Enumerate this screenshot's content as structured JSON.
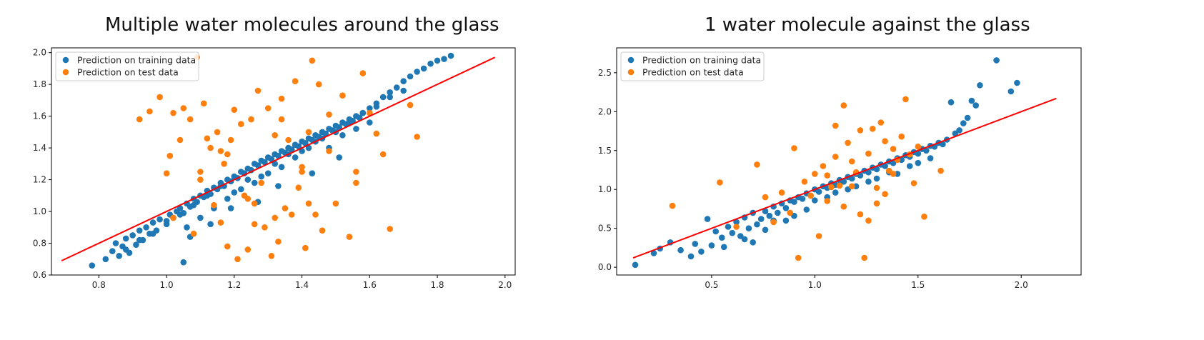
{
  "chart_data": [
    {
      "type": "scatter",
      "title": "Multiple water molecules around the glass",
      "xlabel": "",
      "ylabel": "",
      "xlim": [
        0.66,
        2.03
      ],
      "ylim": [
        0.6,
        2.03
      ],
      "xticks": [
        0.8,
        1.0,
        1.2,
        1.4,
        1.6,
        1.8,
        2.0
      ],
      "xtick_labels": [
        "0.8",
        "1.0",
        "1.2",
        "1.4",
        "1.6",
        "1.8",
        "2.0"
      ],
      "yticks": [
        0.6,
        0.8,
        1.0,
        1.2,
        1.4,
        1.6,
        1.8,
        2.0
      ],
      "ytick_labels": [
        "0.6",
        "0.8",
        "1.0",
        "1.2",
        "1.4",
        "1.6",
        "1.8",
        "2.0"
      ],
      "grid": false,
      "legend_position": "upper-left",
      "series": [
        {
          "name": "Prediction on training data",
          "color": "#1f77b4",
          "x": [
            0.78,
            0.82,
            0.84,
            0.85,
            0.86,
            0.87,
            0.88,
            0.89,
            0.9,
            0.91,
            0.92,
            0.93,
            0.94,
            0.95,
            0.96,
            0.97,
            0.98,
            1.0,
            1.01,
            1.02,
            1.03,
            1.04,
            1.05,
            1.06,
            1.07,
            1.08,
            1.09,
            1.1,
            1.11,
            1.12,
            1.13,
            1.14,
            1.15,
            1.16,
            1.17,
            1.18,
            1.19,
            1.2,
            1.21,
            1.22,
            1.23,
            1.24,
            1.25,
            1.26,
            1.27,
            1.28,
            1.29,
            1.3,
            1.31,
            1.32,
            1.33,
            1.34,
            1.35,
            1.36,
            1.37,
            1.38,
            1.39,
            1.4,
            1.41,
            1.42,
            1.43,
            1.44,
            1.45,
            1.46,
            1.47,
            1.48,
            1.49,
            1.5,
            1.51,
            1.52,
            1.53,
            1.54,
            1.55,
            1.56,
            1.57,
            1.58,
            1.6,
            1.62,
            1.64,
            1.66,
            1.68,
            1.7,
            1.72,
            1.74,
            1.76,
            1.78,
            1.8,
            1.82,
            1.84,
            1.06,
            1.1,
            1.14,
            1.18,
            1.22,
            1.26,
            1.3,
            1.34,
            1.38,
            1.42,
            1.46,
            1.5,
            1.54,
            1.58,
            1.62,
            1.66,
            1.7,
            0.88,
            0.92,
            0.96,
            1.0,
            1.04,
            1.08,
            1.12,
            1.16,
            1.2,
            1.24,
            1.28,
            1.32,
            1.36,
            1.4,
            1.44,
            1.48,
            1.52,
            1.56,
            1.6,
            1.05,
            1.07,
            1.13,
            1.19,
            1.27,
            1.33,
            1.43,
            1.51
          ],
          "y": [
            0.66,
            0.7,
            0.75,
            0.8,
            0.72,
            0.78,
            0.83,
            0.74,
            0.85,
            0.79,
            0.88,
            0.82,
            0.9,
            0.86,
            0.93,
            0.88,
            0.95,
            0.92,
            0.98,
            0.96,
            1.0,
            1.02,
            0.99,
            1.05,
            1.03,
            1.08,
            1.06,
            1.1,
            1.09,
            1.13,
            1.11,
            1.15,
            1.14,
            1.18,
            1.16,
            1.2,
            1.19,
            1.22,
            1.21,
            1.25,
            1.24,
            1.27,
            1.26,
            1.3,
            1.29,
            1.32,
            1.31,
            1.34,
            1.33,
            1.36,
            1.35,
            1.38,
            1.37,
            1.4,
            1.39,
            1.42,
            1.41,
            1.44,
            1.43,
            1.46,
            1.45,
            1.48,
            1.47,
            1.5,
            1.49,
            1.52,
            1.51,
            1.54,
            1.53,
            1.56,
            1.55,
            1.58,
            1.57,
            1.6,
            1.59,
            1.62,
            1.65,
            1.68,
            1.72,
            1.75,
            1.78,
            1.82,
            1.85,
            1.88,
            1.9,
            1.93,
            1.95,
            1.96,
            1.98,
            0.9,
            0.96,
            1.02,
            1.08,
            1.14,
            1.18,
            1.24,
            1.28,
            1.34,
            1.4,
            1.46,
            1.5,
            1.56,
            1.62,
            1.66,
            1.72,
            1.76,
            0.76,
            0.82,
            0.86,
            0.94,
            0.98,
            1.04,
            1.1,
            1.16,
            1.12,
            1.2,
            1.22,
            1.3,
            1.36,
            1.38,
            1.44,
            1.4,
            1.48,
            1.52,
            1.56,
            0.68,
            0.84,
            0.92,
            1.02,
            1.06,
            1.16,
            1.24,
            1.34
          ],
          "points_note": ""
        },
        {
          "name": "Prediction on test data",
          "color": "#ff7f0e",
          "x": [
            0.92,
            0.95,
            0.98,
            1.0,
            1.01,
            1.02,
            1.04,
            1.05,
            1.07,
            1.09,
            1.1,
            1.11,
            1.12,
            1.13,
            1.14,
            1.15,
            1.16,
            1.17,
            1.18,
            1.19,
            1.2,
            1.21,
            1.22,
            1.23,
            1.24,
            1.25,
            1.26,
            1.27,
            1.28,
            1.29,
            1.3,
            1.31,
            1.32,
            1.33,
            1.34,
            1.35,
            1.36,
            1.37,
            1.38,
            1.39,
            1.4,
            1.41,
            1.42,
            1.43,
            1.44,
            1.45,
            1.46,
            1.48,
            1.5,
            1.52,
            1.54,
            1.56,
            1.58,
            1.6,
            1.62,
            1.64,
            1.66,
            1.72,
            1.74,
            1.02,
            1.1,
            1.18,
            1.26,
            1.34,
            1.42,
            1.08,
            1.16,
            1.24,
            1.32,
            1.4,
            1.48,
            1.56
          ],
          "y": [
            1.58,
            1.63,
            1.72,
            1.24,
            1.35,
            1.62,
            1.45,
            1.65,
            1.58,
            1.97,
            1.25,
            1.68,
            1.46,
            1.4,
            1.04,
            1.5,
            0.93,
            1.3,
            0.78,
            1.45,
            1.64,
            0.7,
            1.55,
            1.1,
            0.76,
            1.58,
            0.92,
            1.76,
            1.18,
            0.9,
            1.65,
            0.72,
            1.48,
            0.81,
            1.71,
            1.02,
            1.45,
            0.98,
            1.82,
            1.15,
            1.25,
            0.77,
            1.5,
            1.95,
            0.98,
            1.8,
            0.88,
            1.61,
            1.05,
            1.73,
            0.84,
            1.18,
            1.87,
            1.62,
            1.49,
            1.36,
            0.89,
            1.67,
            1.47,
            0.96,
            1.2,
            1.36,
            1.05,
            1.58,
            1.05,
            0.86,
            1.38,
            1.08,
            0.96,
            1.28,
            1.38,
            1.25
          ]
        }
      ],
      "fit_line": {
        "color": "#ff0000",
        "x": [
          0.69,
          1.97
        ],
        "y": [
          0.69,
          1.97
        ]
      }
    },
    {
      "type": "scatter",
      "title": "1 water molecule against the glass",
      "xlabel": "",
      "ylabel": "",
      "xlim": [
        0.04,
        2.29
      ],
      "ylim": [
        -0.1,
        2.82
      ],
      "xticks": [
        0.5,
        1.0,
        1.5,
        2.0
      ],
      "xtick_labels": [
        "0.5",
        "1.0",
        "1.5",
        "2.0"
      ],
      "yticks": [
        0.0,
        0.5,
        1.0,
        1.5,
        2.0,
        2.5
      ],
      "ytick_labels": [
        "0.0",
        "0.5",
        "1.0",
        "1.5",
        "2.0",
        "2.5"
      ],
      "grid": false,
      "legend_position": "upper-left",
      "series": [
        {
          "name": "Prediction on training data",
          "color": "#1f77b4",
          "x": [
            0.13,
            0.22,
            0.25,
            0.3,
            0.35,
            0.4,
            0.42,
            0.45,
            0.48,
            0.5,
            0.52,
            0.55,
            0.58,
            0.6,
            0.62,
            0.64,
            0.66,
            0.68,
            0.7,
            0.72,
            0.74,
            0.76,
            0.78,
            0.8,
            0.82,
            0.84,
            0.86,
            0.88,
            0.9,
            0.92,
            0.94,
            0.96,
            0.98,
            1.0,
            1.02,
            1.04,
            1.06,
            1.08,
            1.1,
            1.12,
            1.14,
            1.16,
            1.18,
            1.2,
            1.22,
            1.24,
            1.26,
            1.28,
            1.3,
            1.32,
            1.34,
            1.36,
            1.38,
            1.4,
            1.42,
            1.44,
            1.46,
            1.48,
            1.5,
            1.52,
            1.54,
            1.56,
            1.58,
            1.6,
            1.62,
            1.64,
            1.66,
            1.68,
            1.7,
            1.72,
            1.74,
            1.76,
            1.78,
            1.8,
            1.88,
            1.95,
            1.98,
            0.56,
            0.66,
            0.76,
            0.86,
            0.96,
            1.06,
            1.16,
            1.26,
            1.36,
            1.46,
            1.56,
            0.7,
            0.8,
            0.9,
            1.0,
            1.1,
            1.2,
            1.3,
            1.4,
            1.5
          ],
          "y": [
            0.03,
            0.18,
            0.24,
            0.32,
            0.22,
            0.14,
            0.3,
            0.2,
            0.62,
            0.28,
            0.46,
            0.38,
            0.52,
            0.44,
            0.58,
            0.4,
            0.64,
            0.5,
            0.7,
            0.55,
            0.62,
            0.72,
            0.66,
            0.78,
            0.7,
            0.82,
            0.76,
            0.86,
            0.84,
            0.9,
            0.88,
            0.95,
            0.92,
            1.0,
            0.97,
            1.04,
            1.02,
            1.08,
            1.06,
            1.12,
            1.1,
            1.16,
            1.14,
            1.2,
            1.18,
            1.24,
            1.22,
            1.28,
            1.26,
            1.32,
            1.3,
            1.36,
            1.34,
            1.4,
            1.38,
            1.44,
            1.42,
            1.48,
            1.46,
            1.52,
            1.5,
            1.56,
            1.55,
            1.6,
            1.58,
            1.64,
            2.12,
            1.72,
            1.76,
            1.85,
            1.92,
            2.14,
            2.08,
            2.34,
            2.66,
            2.26,
            2.37,
            0.26,
            0.36,
            0.48,
            0.6,
            0.74,
            0.9,
            1.0,
            1.1,
            1.22,
            1.3,
            1.4,
            0.32,
            0.6,
            0.66,
            0.86,
            0.96,
            1.04,
            1.14,
            1.2,
            1.34
          ],
          "points_note": ""
        },
        {
          "name": "Prediction on test data",
          "color": "#ff7f0e",
          "x": [
            0.31,
            0.54,
            0.62,
            0.72,
            0.76,
            0.8,
            0.84,
            0.88,
            0.9,
            0.92,
            0.95,
            0.98,
            1.0,
            1.02,
            1.04,
            1.06,
            1.08,
            1.1,
            1.12,
            1.14,
            1.16,
            1.18,
            1.2,
            1.22,
            1.24,
            1.26,
            1.28,
            1.3,
            1.32,
            1.34,
            1.36,
            1.38,
            1.4,
            1.42,
            1.44,
            1.46,
            1.48,
            1.5,
            1.53,
            1.61,
            1.06,
            1.14,
            1.22,
            1.3,
            1.38,
            1.1,
            1.18,
            1.26,
            1.34
          ],
          "y": [
            0.79,
            1.09,
            0.52,
            1.32,
            0.9,
            0.58,
            0.96,
            0.7,
            1.53,
            0.12,
            1.1,
            0.92,
            1.2,
            0.4,
            1.3,
            1.18,
            1.03,
            1.42,
            1.05,
            2.08,
            1.6,
            1.36,
            1.22,
            1.76,
            0.12,
            1.46,
            1.78,
            1.02,
            1.86,
            1.62,
            1.24,
            1.52,
            1.38,
            1.68,
            2.16,
            1.45,
            1.08,
            1.55,
            0.65,
            1.24,
            0.85,
            0.78,
            0.68,
            0.82,
            1.2,
            1.82,
            1.04,
            0.6,
            0.94
          ]
        }
      ],
      "fit_line": {
        "color": "#ff0000",
        "x": [
          0.12,
          2.17
        ],
        "y": [
          0.12,
          2.17
        ]
      }
    }
  ],
  "legend": {
    "entries": [
      "Prediction on training data",
      "Prediction on test data"
    ]
  }
}
